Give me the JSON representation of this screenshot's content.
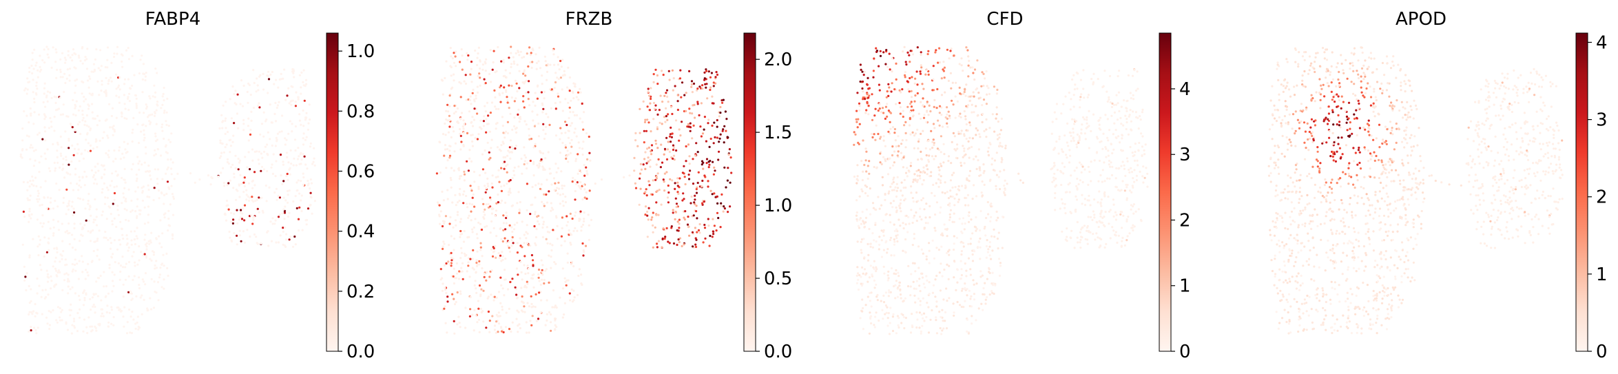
{
  "chart_data": [
    {
      "type": "scatter",
      "title": "FABP4",
      "xlabel": "",
      "ylabel": "",
      "colormap": "Reds",
      "colorbar": {
        "min": 0.0,
        "max": 1.06,
        "ticks": [
          "0.0",
          "0.2",
          "0.4",
          "0.6",
          "0.8",
          "1.0"
        ],
        "tick_values": [
          0.0,
          0.2,
          0.4,
          0.6,
          0.8,
          1.0
        ]
      },
      "pattern": "fabp4",
      "grid": false,
      "axes_visible": false
    },
    {
      "type": "scatter",
      "title": "FRZB",
      "xlabel": "",
      "ylabel": "",
      "colormap": "Reds",
      "colorbar": {
        "min": 0.0,
        "max": 2.18,
        "ticks": [
          "0.0",
          "0.5",
          "1.0",
          "1.5",
          "2.0"
        ],
        "tick_values": [
          0.0,
          0.5,
          1.0,
          1.5,
          2.0
        ]
      },
      "pattern": "frzb",
      "grid": false,
      "axes_visible": false
    },
    {
      "type": "scatter",
      "title": "CFD",
      "xlabel": "",
      "ylabel": "",
      "colormap": "Reds",
      "colorbar": {
        "min": 0,
        "max": 4.85,
        "ticks": [
          "0",
          "1",
          "2",
          "3",
          "4"
        ],
        "tick_values": [
          0,
          1,
          2,
          3,
          4
        ]
      },
      "pattern": "cfd",
      "grid": false,
      "axes_visible": false
    },
    {
      "type": "scatter",
      "title": "APOD",
      "xlabel": "",
      "ylabel": "",
      "colormap": "Reds",
      "colorbar": {
        "min": 0,
        "max": 4.12,
        "ticks": [
          "0",
          "1",
          "2",
          "3",
          "4"
        ],
        "tick_values": [
          0,
          1,
          2,
          3,
          4
        ]
      },
      "pattern": "apod",
      "grid": false,
      "axes_visible": false
    }
  ]
}
